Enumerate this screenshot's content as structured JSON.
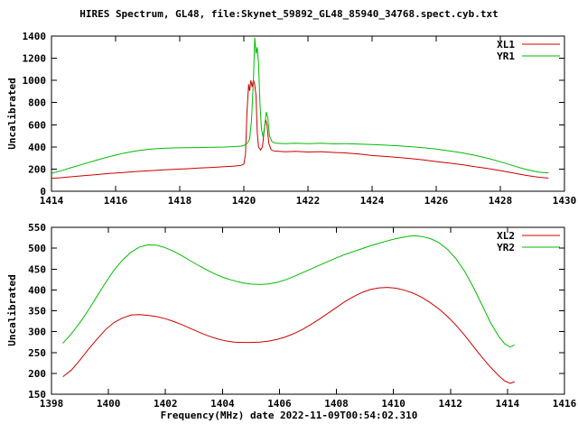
{
  "figure": {
    "title": "HIRES Spectrum, GL48, file:Skynet_59892_GL48_85940_34768.spect.cyb.txt",
    "xlabel": "Frequency(MHz) date 2022-11-09T00:54:02.310",
    "background": "#ffffff",
    "text_color": "#000000",
    "axis_color": "#000000"
  },
  "chart_data": [
    {
      "type": "line",
      "title": "HIRES Spectrum, GL48, file:Skynet_59892_GL48_85940_34768.spect.cyb.txt",
      "xlabel": "",
      "ylabel": "Uncalibrated",
      "xlim": [
        1414,
        1430
      ],
      "ylim": [
        0,
        1400
      ],
      "xticks": [
        1414,
        1416,
        1418,
        1420,
        1422,
        1424,
        1426,
        1428,
        1430
      ],
      "yticks": [
        0,
        200,
        400,
        600,
        800,
        1000,
        1200,
        1400
      ],
      "grid": false,
      "legend_position": "top-right-inside",
      "series": [
        {
          "name": "XL1",
          "color": "#cc0000",
          "points": [
            [
              1414.0,
              116
            ],
            [
              1414.3,
              122
            ],
            [
              1414.6,
              130
            ],
            [
              1415.0,
              141
            ],
            [
              1415.4,
              150
            ],
            [
              1415.8,
              160
            ],
            [
              1416.2,
              168
            ],
            [
              1416.6,
              177
            ],
            [
              1417.0,
              184
            ],
            [
              1417.4,
              191
            ],
            [
              1417.8,
              197
            ],
            [
              1418.2,
              203
            ],
            [
              1418.6,
              209
            ],
            [
              1419.0,
              215
            ],
            [
              1419.4,
              221
            ],
            [
              1419.7,
              227
            ],
            [
              1419.9,
              233
            ],
            [
              1420.0,
              245
            ],
            [
              1420.05,
              330
            ],
            [
              1420.1,
              720
            ],
            [
              1420.15,
              965
            ],
            [
              1420.18,
              905
            ],
            [
              1420.22,
              1000
            ],
            [
              1420.26,
              940
            ],
            [
              1420.3,
              1005
            ],
            [
              1420.34,
              960
            ],
            [
              1420.38,
              860
            ],
            [
              1420.42,
              520
            ],
            [
              1420.46,
              400
            ],
            [
              1420.52,
              372
            ],
            [
              1420.58,
              400
            ],
            [
              1420.64,
              560
            ],
            [
              1420.68,
              648
            ],
            [
              1420.72,
              600
            ],
            [
              1420.78,
              430
            ],
            [
              1420.85,
              375
            ],
            [
              1420.92,
              365
            ],
            [
              1421.0,
              362
            ],
            [
              1421.3,
              356
            ],
            [
              1421.6,
              360
            ],
            [
              1422.0,
              354
            ],
            [
              1422.4,
              357
            ],
            [
              1422.8,
              350
            ],
            [
              1423.2,
              345
            ],
            [
              1423.6,
              336
            ],
            [
              1424.0,
              322
            ],
            [
              1424.4,
              314
            ],
            [
              1424.8,
              305
            ],
            [
              1425.2,
              295
            ],
            [
              1425.6,
              283
            ],
            [
              1426.0,
              268
            ],
            [
              1426.4,
              255
            ],
            [
              1426.8,
              240
            ],
            [
              1427.2,
              222
            ],
            [
              1427.6,
              206
            ],
            [
              1428.0,
              186
            ],
            [
              1428.4,
              165
            ],
            [
              1428.8,
              143
            ],
            [
              1429.2,
              126
            ],
            [
              1429.5,
              119
            ]
          ]
        },
        {
          "name": "YR1",
          "color": "#00bb00",
          "points": [
            [
              1414.0,
              162
            ],
            [
              1414.3,
              185
            ],
            [
              1414.6,
              212
            ],
            [
              1415.0,
              246
            ],
            [
              1415.4,
              280
            ],
            [
              1415.8,
              312
            ],
            [
              1416.2,
              340
            ],
            [
              1416.6,
              362
            ],
            [
              1417.0,
              378
            ],
            [
              1417.4,
              387
            ],
            [
              1417.8,
              391
            ],
            [
              1418.2,
              393
            ],
            [
              1418.6,
              394
            ],
            [
              1419.0,
              396
            ],
            [
              1419.4,
              399
            ],
            [
              1419.7,
              403
            ],
            [
              1419.9,
              407
            ],
            [
              1420.0,
              412
            ],
            [
              1420.1,
              430
            ],
            [
              1420.18,
              470
            ],
            [
              1420.24,
              640
            ],
            [
              1420.3,
              1000
            ],
            [
              1420.34,
              1385
            ],
            [
              1420.38,
              1240
            ],
            [
              1420.42,
              1300
            ],
            [
              1420.46,
              1150
            ],
            [
              1420.5,
              800
            ],
            [
              1420.55,
              560
            ],
            [
              1420.6,
              490
            ],
            [
              1420.65,
              590
            ],
            [
              1420.7,
              715
            ],
            [
              1420.75,
              660
            ],
            [
              1420.8,
              500
            ],
            [
              1420.87,
              452
            ],
            [
              1420.94,
              438
            ],
            [
              1421.0,
              433
            ],
            [
              1421.3,
              429
            ],
            [
              1421.6,
              434
            ],
            [
              1422.0,
              430
            ],
            [
              1422.4,
              433
            ],
            [
              1422.8,
              428
            ],
            [
              1423.2,
              430
            ],
            [
              1423.6,
              426
            ],
            [
              1424.0,
              421
            ],
            [
              1424.4,
              416
            ],
            [
              1424.8,
              410
            ],
            [
              1425.2,
              402
            ],
            [
              1425.6,
              392
            ],
            [
              1426.0,
              380
            ],
            [
              1426.4,
              365
            ],
            [
              1426.8,
              347
            ],
            [
              1427.2,
              325
            ],
            [
              1427.6,
              298
            ],
            [
              1428.0,
              266
            ],
            [
              1428.4,
              230
            ],
            [
              1428.8,
              196
            ],
            [
              1429.2,
              172
            ],
            [
              1429.5,
              166
            ]
          ]
        }
      ]
    },
    {
      "type": "line",
      "title": "",
      "xlabel": "Frequency(MHz) date 2022-11-09T00:54:02.310",
      "ylabel": "Uncalibrated",
      "xlim": [
        1398,
        1416
      ],
      "ylim": [
        150,
        550
      ],
      "xticks": [
        1398,
        1400,
        1402,
        1404,
        1406,
        1408,
        1410,
        1412,
        1414,
        1416
      ],
      "yticks": [
        150,
        200,
        250,
        300,
        350,
        400,
        450,
        500,
        550
      ],
      "grid": false,
      "legend_position": "top-right-inside",
      "series": [
        {
          "name": "XL2",
          "color": "#cc0000",
          "points": [
            [
              1398.4,
              192
            ],
            [
              1398.7,
              208
            ],
            [
              1399.0,
              232
            ],
            [
              1399.3,
              258
            ],
            [
              1399.6,
              282
            ],
            [
              1399.9,
              305
            ],
            [
              1400.2,
              322
            ],
            [
              1400.5,
              333
            ],
            [
              1400.8,
              340
            ],
            [
              1401.1,
              341
            ],
            [
              1401.4,
              339
            ],
            [
              1401.7,
              336
            ],
            [
              1402.0,
              331
            ],
            [
              1402.3,
              324
            ],
            [
              1402.6,
              316
            ],
            [
              1402.9,
              307
            ],
            [
              1403.2,
              298
            ],
            [
              1403.5,
              290
            ],
            [
              1403.8,
              283
            ],
            [
              1404.1,
              278
            ],
            [
              1404.4,
              275
            ],
            [
              1404.7,
              274
            ],
            [
              1405.0,
              274
            ],
            [
              1405.3,
              275
            ],
            [
              1405.6,
              277
            ],
            [
              1405.9,
              281
            ],
            [
              1406.2,
              287
            ],
            [
              1406.5,
              295
            ],
            [
              1406.8,
              305
            ],
            [
              1407.1,
              317
            ],
            [
              1407.4,
              330
            ],
            [
              1407.7,
              344
            ],
            [
              1408.0,
              358
            ],
            [
              1408.3,
              372
            ],
            [
              1408.6,
              384
            ],
            [
              1408.9,
              394
            ],
            [
              1409.2,
              401
            ],
            [
              1409.5,
              405
            ],
            [
              1409.8,
              406
            ],
            [
              1410.1,
              404
            ],
            [
              1410.4,
              399
            ],
            [
              1410.7,
              392
            ],
            [
              1411.0,
              382
            ],
            [
              1411.3,
              369
            ],
            [
              1411.6,
              354
            ],
            [
              1411.9,
              336
            ],
            [
              1412.2,
              315
            ],
            [
              1412.5,
              291
            ],
            [
              1412.8,
              265
            ],
            [
              1413.1,
              239
            ],
            [
              1413.4,
              215
            ],
            [
              1413.7,
              194
            ],
            [
              1413.9,
              182
            ],
            [
              1414.1,
              176
            ],
            [
              1414.25,
              180
            ]
          ]
        },
        {
          "name": "YR2",
          "color": "#00bb00",
          "points": [
            [
              1398.4,
              272
            ],
            [
              1398.7,
              295
            ],
            [
              1399.0,
              322
            ],
            [
              1399.3,
              352
            ],
            [
              1399.6,
              385
            ],
            [
              1399.9,
              418
            ],
            [
              1400.2,
              448
            ],
            [
              1400.5,
              472
            ],
            [
              1400.8,
              491
            ],
            [
              1401.1,
              503
            ],
            [
              1401.4,
              508
            ],
            [
              1401.7,
              507
            ],
            [
              1402.0,
              501
            ],
            [
              1402.3,
              492
            ],
            [
              1402.6,
              481
            ],
            [
              1402.9,
              469
            ],
            [
              1403.2,
              457
            ],
            [
              1403.5,
              446
            ],
            [
              1403.8,
              436
            ],
            [
              1404.1,
              428
            ],
            [
              1404.4,
              422
            ],
            [
              1404.7,
              417
            ],
            [
              1405.0,
              414
            ],
            [
              1405.3,
              413
            ],
            [
              1405.6,
              414
            ],
            [
              1405.9,
              418
            ],
            [
              1406.2,
              424
            ],
            [
              1406.5,
              432
            ],
            [
              1406.8,
              441
            ],
            [
              1407.1,
              450
            ],
            [
              1407.4,
              459
            ],
            [
              1407.7,
              468
            ],
            [
              1408.0,
              477
            ],
            [
              1408.3,
              485
            ],
            [
              1408.6,
              492
            ],
            [
              1408.9,
              499
            ],
            [
              1409.2,
              506
            ],
            [
              1409.5,
              512
            ],
            [
              1409.8,
              518
            ],
            [
              1410.1,
              523
            ],
            [
              1410.4,
              527
            ],
            [
              1410.7,
              530
            ],
            [
              1411.0,
              528
            ],
            [
              1411.3,
              523
            ],
            [
              1411.6,
              513
            ],
            [
              1411.9,
              497
            ],
            [
              1412.2,
              474
            ],
            [
              1412.5,
              444
            ],
            [
              1412.8,
              407
            ],
            [
              1413.1,
              365
            ],
            [
              1413.4,
              322
            ],
            [
              1413.7,
              288
            ],
            [
              1413.9,
              271
            ],
            [
              1414.1,
              263
            ],
            [
              1414.25,
              268
            ]
          ]
        }
      ]
    }
  ]
}
